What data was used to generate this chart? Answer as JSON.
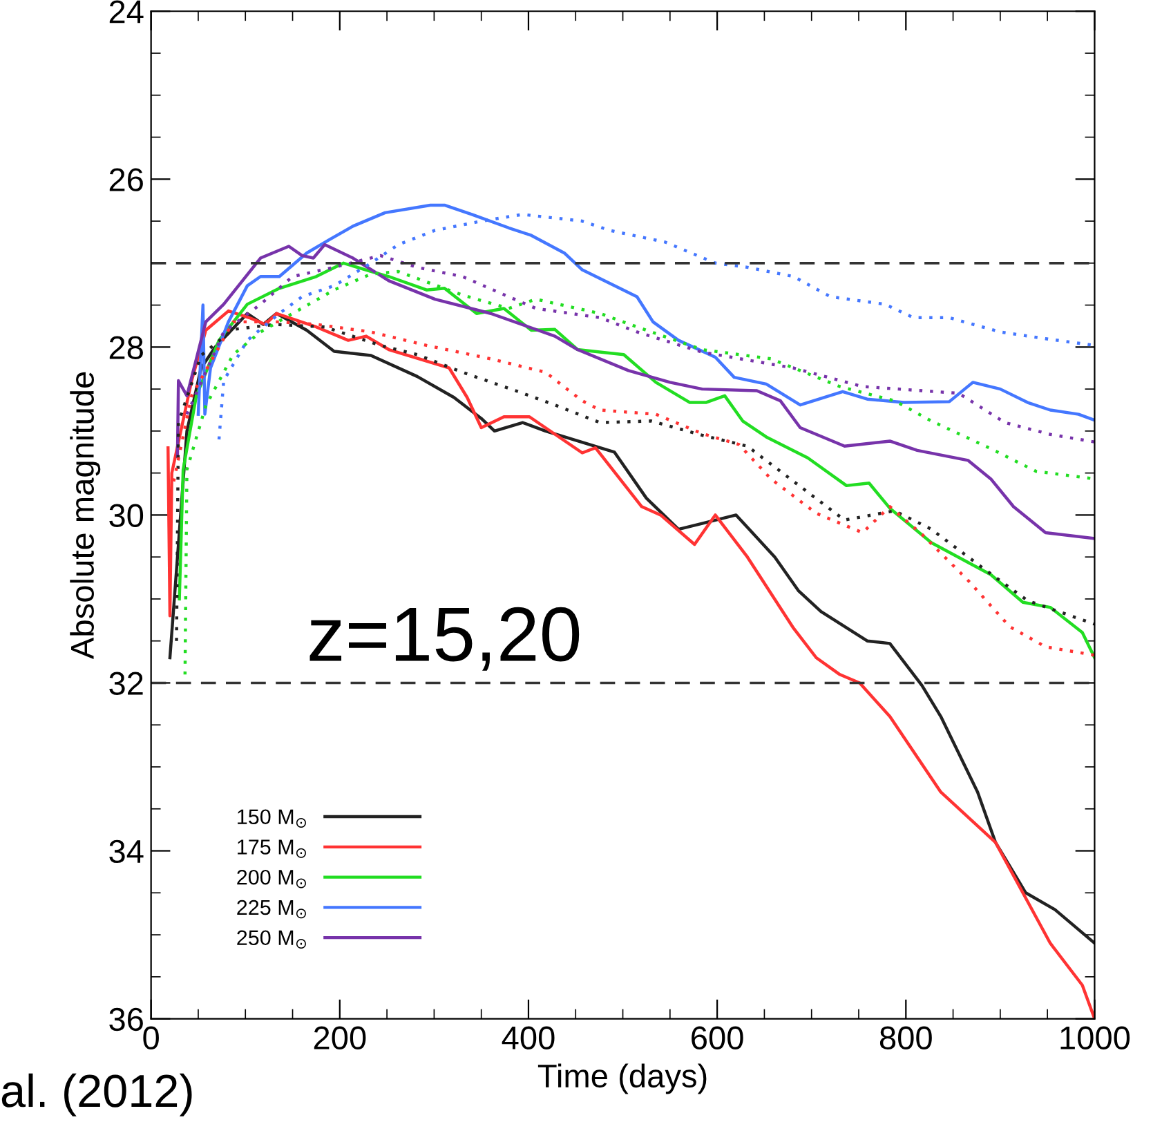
{
  "chart_data": {
    "type": "line",
    "xlabel": "Time (days)",
    "ylabel": "Absolute magnitude",
    "xlim": [
      0,
      1000
    ],
    "xticks": [
      0,
      200,
      400,
      600,
      800,
      1000
    ],
    "ylim": [
      36,
      24
    ],
    "yticks": [
      24,
      26,
      28,
      30,
      32,
      34,
      36
    ],
    "grid": false,
    "legend": "bottom left",
    "marker": "none",
    "ref_lines": [
      {
        "axis": "y",
        "value": 27,
        "color": "#333333",
        "line_style": "dashed"
      },
      {
        "axis": "y",
        "value": 32,
        "color": "#333333",
        "line_style": "dashed"
      }
    ],
    "annotations": [
      "z=15,20",
      "al. (2012)"
    ],
    "series": [
      {
        "name": "150 M$_{⊙}$",
        "color": "#222222",
        "line_style": "solid",
        "x": [
          20,
          38,
          53,
          68,
          102,
          119,
          133,
          165,
          194,
          233,
          282,
          321,
          350,
          364,
          394,
          418,
          491,
          525,
          559,
          620,
          661,
          686,
          710,
          759,
          783,
          817,
          837,
          876,
          895,
          927,
          958,
          1000
        ],
        "values": [
          31.7,
          29.0,
          28.25,
          28.0,
          27.6,
          27.73,
          27.6,
          27.8,
          28.05,
          28.1,
          28.35,
          28.6,
          28.85,
          29.0,
          28.9,
          29.0,
          29.25,
          29.8,
          30.17,
          30.0,
          30.5,
          30.9,
          31.15,
          31.5,
          31.53,
          32.03,
          32.4,
          33.3,
          33.9,
          34.5,
          34.7,
          35.1
        ]
      },
      {
        "name": "175 M$_{⊙}$",
        "color": "#ff3333",
        "line_style": "solid",
        "x": [
          18,
          20,
          22,
          43,
          58,
          82,
          104,
          121,
          133,
          175,
          209,
          228,
          252,
          316,
          335,
          350,
          374,
          401,
          457,
          471,
          520,
          540,
          576,
          598,
          632,
          681,
          705,
          730,
          751,
          783,
          837,
          895,
          953,
          987,
          1000
        ],
        "values": [
          29.2,
          31.2,
          29.5,
          28.4,
          27.8,
          27.57,
          27.65,
          27.73,
          27.6,
          27.76,
          27.92,
          27.87,
          28.03,
          28.25,
          28.6,
          28.96,
          28.83,
          28.83,
          29.26,
          29.2,
          29.9,
          30.0,
          30.35,
          30.0,
          30.5,
          31.35,
          31.7,
          31.9,
          32.0,
          32.4,
          33.3,
          33.9,
          35.1,
          35.6,
          36.0
        ]
      },
      {
        "name": "200 M$_{⊙}$",
        "color": "#22dd22",
        "line_style": "solid",
        "x": [
          30,
          34,
          48,
          72,
          102,
          136,
          175,
          204,
          233,
          252,
          292,
          311,
          345,
          374,
          403,
          428,
          452,
          501,
          535,
          571,
          588,
          608,
          627,
          652,
          696,
          737,
          761,
          783,
          827,
          890,
          924,
          953,
          987,
          1000
        ],
        "values": [
          31.0,
          29.46,
          28.58,
          27.92,
          27.49,
          27.3,
          27.16,
          27.0,
          27.1,
          27.16,
          27.32,
          27.3,
          27.6,
          27.54,
          27.8,
          27.79,
          28.03,
          28.09,
          28.42,
          28.66,
          28.66,
          28.58,
          28.88,
          29.07,
          29.32,
          29.65,
          29.62,
          29.92,
          30.33,
          30.71,
          31.04,
          31.1,
          31.4,
          31.7
        ]
      },
      {
        "name": "225 M$_{⊙}$",
        "color": "#4477ff",
        "line_style": "solid",
        "x": [
          50,
          55,
          57,
          63,
          82,
          102,
          116,
          136,
          165,
          189,
          214,
          248,
          296,
          311,
          340,
          379,
          403,
          438,
          457,
          486,
          515,
          532,
          559,
          598,
          618,
          652,
          688,
          733,
          759,
          798,
          846,
          871,
          900,
          929,
          953,
          983,
          1000
        ],
        "values": [
          28.8,
          27.5,
          28.8,
          28.25,
          27.7,
          27.27,
          27.16,
          27.16,
          26.88,
          26.72,
          26.56,
          26.4,
          26.31,
          26.31,
          26.42,
          26.58,
          26.67,
          26.88,
          27.08,
          27.24,
          27.4,
          27.7,
          27.92,
          28.12,
          28.36,
          28.44,
          28.69,
          28.53,
          28.62,
          28.66,
          28.65,
          28.42,
          28.5,
          28.66,
          28.75,
          28.8,
          28.87
        ]
      },
      {
        "name": "250 M$_{⊙}$",
        "color": "#7733aa",
        "line_style": "solid",
        "x": [
          28,
          29,
          38,
          58,
          77,
          116,
          146,
          160,
          172,
          184,
          214,
          252,
          301,
          360,
          428,
          452,
          506,
          550,
          584,
          642,
          667,
          688,
          735,
          783,
          812,
          866,
          890,
          914,
          948,
          1000
        ],
        "values": [
          29.3,
          28.4,
          28.58,
          27.7,
          27.49,
          26.94,
          26.8,
          26.91,
          26.94,
          26.78,
          26.94,
          27.21,
          27.43,
          27.6,
          27.87,
          28.03,
          28.28,
          28.42,
          28.5,
          28.52,
          28.64,
          28.96,
          29.18,
          29.12,
          29.23,
          29.35,
          29.57,
          29.9,
          30.21,
          30.28
        ]
      },
      {
        "color": "#222222",
        "line_style": "dotted",
        "x": [
          27,
          29,
          53,
          87,
          131,
          184,
          243,
          282,
          330,
          389,
          428,
          476,
          530,
          584,
          632,
          681,
          735,
          788,
          827,
          885,
          929,
          1000
        ],
        "values": [
          31.5,
          28.9,
          28.1,
          27.79,
          27.73,
          27.76,
          27.98,
          28.09,
          28.3,
          28.53,
          28.69,
          28.9,
          28.88,
          29.05,
          29.18,
          29.6,
          30.06,
          29.95,
          30.17,
          30.66,
          31.02,
          31.3
        ]
      },
      {
        "color": "#ff3333",
        "line_style": "dotted",
        "x": [
          24,
          43,
          87,
          136,
          175,
          233,
          292,
          360,
          418,
          457,
          476,
          535,
          584,
          623,
          657,
          705,
          754,
          783,
          817,
          866,
          910,
          948,
          1000
        ],
        "values": [
          29.6,
          28.58,
          27.7,
          27.7,
          27.73,
          27.82,
          27.98,
          28.14,
          28.3,
          28.64,
          28.75,
          28.8,
          29.03,
          29.16,
          29.57,
          29.98,
          30.21,
          29.9,
          30.23,
          30.78,
          31.33,
          31.57,
          31.67
        ]
      },
      {
        "color": "#22dd22",
        "line_style": "dotted",
        "x": [
          36,
          38,
          58,
          87,
          116,
          150,
          194,
          233,
          262,
          330,
          379,
          408,
          476,
          515,
          584,
          657,
          730,
          788,
          827,
          890,
          938,
          1000
        ],
        "values": [
          31.9,
          29.46,
          28.7,
          28.09,
          27.82,
          27.6,
          27.32,
          27.13,
          27.1,
          27.38,
          27.54,
          27.43,
          27.6,
          27.76,
          28.03,
          28.14,
          28.47,
          28.64,
          28.88,
          29.21,
          29.48,
          29.57
        ]
      },
      {
        "color": "#4477ff",
        "line_style": "dotted",
        "x": [
          72,
          77,
          102,
          136,
          160,
          194,
          233,
          262,
          301,
          350,
          394,
          457,
          486,
          545,
          598,
          632,
          681,
          720,
          778,
          808,
          846,
          900,
          948,
          1000
        ],
        "values": [
          29.1,
          28.4,
          27.92,
          27.6,
          27.4,
          27.27,
          27.0,
          26.78,
          26.61,
          26.5,
          26.42,
          26.5,
          26.61,
          26.75,
          27.0,
          27.05,
          27.16,
          27.4,
          27.49,
          27.65,
          27.65,
          27.82,
          27.9,
          27.98
        ]
      },
      {
        "color": "#7733aa",
        "line_style": "dotted",
        "x": [
          38,
          77,
          116,
          150,
          194,
          243,
          282,
          330,
          379,
          408,
          476,
          515,
          584,
          681,
          754,
          856,
          905,
          953,
          1000
        ],
        "values": [
          28.8,
          27.82,
          27.49,
          27.16,
          27.05,
          26.91,
          27.05,
          27.16,
          27.4,
          27.54,
          27.65,
          27.82,
          28.06,
          28.25,
          28.47,
          28.55,
          28.9,
          29.04,
          29.13
        ]
      }
    ]
  }
}
